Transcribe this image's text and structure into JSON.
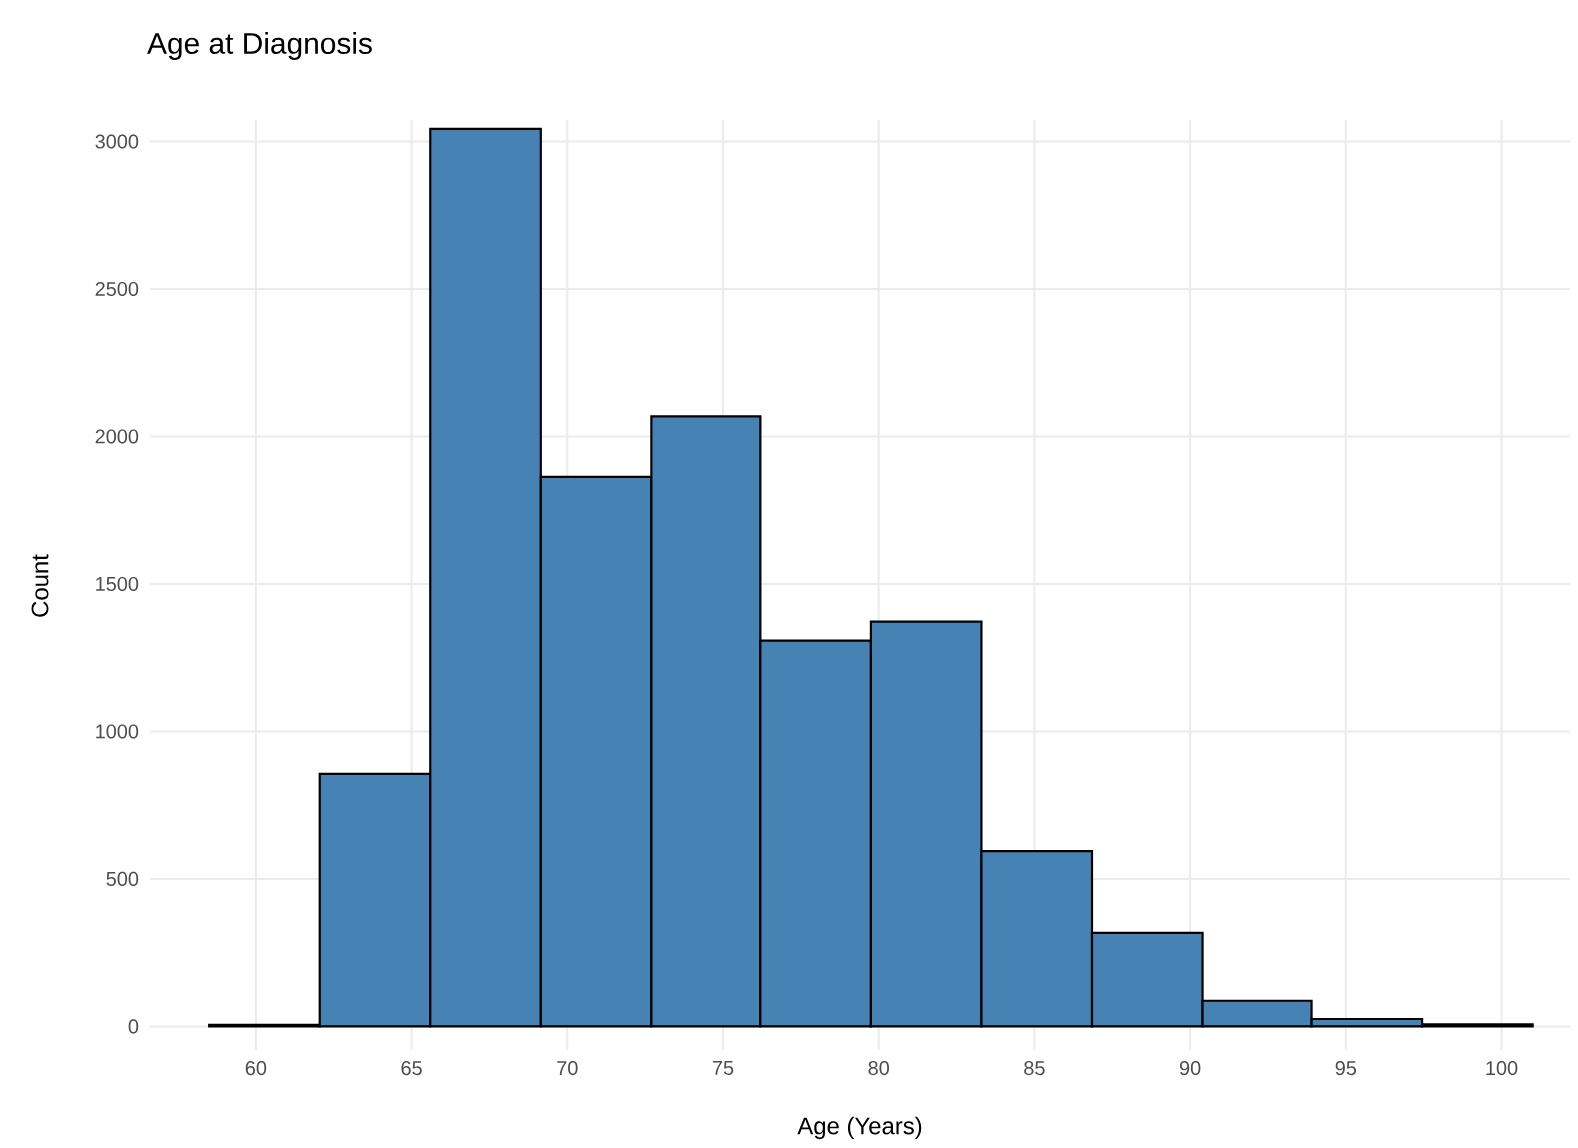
{
  "chart_data": {
    "type": "histogram",
    "title": "Age at Diagnosis",
    "xlabel": "Age (Years)",
    "ylabel": "Count",
    "bins": [
      58.5,
      62.05,
      65.6,
      69.15,
      72.7,
      76.2,
      79.75,
      83.3,
      86.85,
      90.4,
      93.9,
      97.45,
      101.0
    ],
    "values": [
      5,
      856,
      3043,
      1863,
      2068,
      1308,
      1372,
      594,
      317,
      87,
      25,
      7
    ],
    "color": "#4682b4",
    "xlim": [
      56.6,
      102.2
    ],
    "ylim": [
      -80,
      3073
    ],
    "xticks": [
      60,
      65,
      70,
      75,
      80,
      85,
      90,
      95,
      100
    ],
    "yticks": [
      0,
      500,
      1000,
      1500,
      2000,
      2500,
      3000
    ],
    "grid": true
  }
}
